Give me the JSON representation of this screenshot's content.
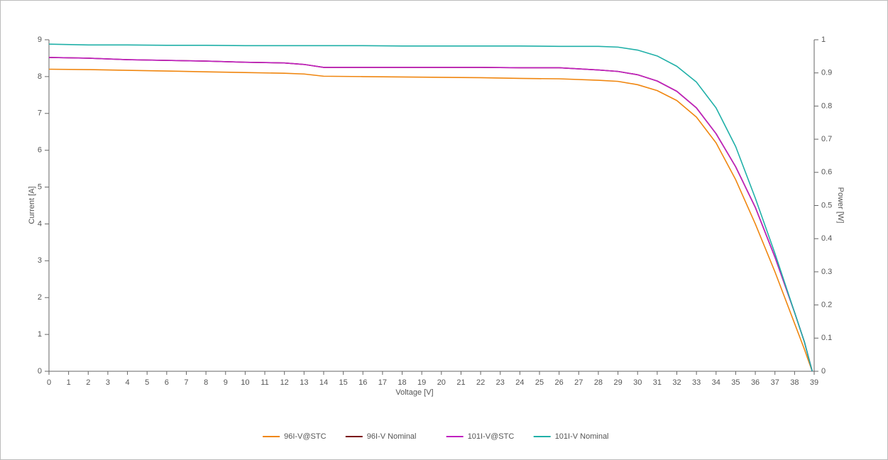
{
  "chart_data": {
    "type": "line",
    "xlabel": "Voltage [V]",
    "ylabel": "Current [A]",
    "y2label": "Power [W]",
    "x": [
      0,
      2,
      4,
      6,
      8,
      10,
      12,
      13,
      14,
      16,
      18,
      20,
      22,
      24,
      26,
      28,
      29,
      30,
      31,
      32,
      33,
      34,
      35,
      36,
      37,
      38,
      38.5,
      38.9
    ],
    "series": [
      {
        "name": "96I-V@STC",
        "color": "#f0860f",
        "values": [
          8.2,
          8.19,
          8.17,
          8.15,
          8.13,
          8.11,
          8.09,
          8.07,
          8.01,
          8.0,
          7.99,
          7.98,
          7.97,
          7.95,
          7.94,
          7.9,
          7.87,
          7.78,
          7.62,
          7.35,
          6.9,
          6.2,
          5.2,
          4.0,
          2.7,
          1.3,
          0.6,
          0
        ]
      },
      {
        "name": "96I-V Nominal",
        "color": "#7a0a12",
        "values": [
          8.52,
          8.5,
          8.46,
          8.44,
          8.42,
          8.39,
          8.37,
          8.33,
          8.25,
          8.25,
          8.25,
          8.25,
          8.25,
          8.24,
          8.24,
          8.18,
          8.14,
          8.05,
          7.88,
          7.6,
          7.15,
          6.45,
          5.55,
          4.45,
          3.1,
          1.6,
          0.8,
          0
        ]
      },
      {
        "name": "101I-V@STC",
        "color": "#c020c0",
        "values": [
          8.52,
          8.5,
          8.46,
          8.44,
          8.42,
          8.39,
          8.37,
          8.33,
          8.25,
          8.25,
          8.25,
          8.25,
          8.25,
          8.24,
          8.24,
          8.18,
          8.14,
          8.05,
          7.88,
          7.6,
          7.15,
          6.45,
          5.55,
          4.45,
          3.1,
          1.6,
          0.8,
          0
        ]
      },
      {
        "name": "101I-V Nominal",
        "color": "#20b0a8",
        "values": [
          8.88,
          8.86,
          8.86,
          8.85,
          8.85,
          8.84,
          8.84,
          8.84,
          8.84,
          8.84,
          8.83,
          8.83,
          8.83,
          8.83,
          8.82,
          8.82,
          8.8,
          8.72,
          8.56,
          8.28,
          7.85,
          7.15,
          6.1,
          4.7,
          3.2,
          1.6,
          0.8,
          0
        ]
      }
    ],
    "xlim": [
      0,
      39
    ],
    "xticks": [
      0,
      1,
      2,
      3,
      4,
      5,
      6,
      7,
      8,
      9,
      10,
      11,
      12,
      13,
      14,
      15,
      16,
      17,
      18,
      19,
      20,
      21,
      22,
      23,
      24,
      25,
      26,
      27,
      28,
      29,
      30,
      31,
      32,
      33,
      34,
      35,
      36,
      37,
      38,
      39
    ],
    "ylim": [
      0,
      9
    ],
    "yticks": [
      0,
      1,
      2,
      3,
      4,
      5,
      6,
      7,
      8,
      9
    ],
    "y2lim": [
      0,
      1
    ],
    "y2ticks": [
      0,
      0.1,
      0.2,
      0.3,
      0.4,
      0.5,
      0.6,
      0.7,
      0.8,
      0.9,
      1
    ],
    "legend": "bottom"
  }
}
